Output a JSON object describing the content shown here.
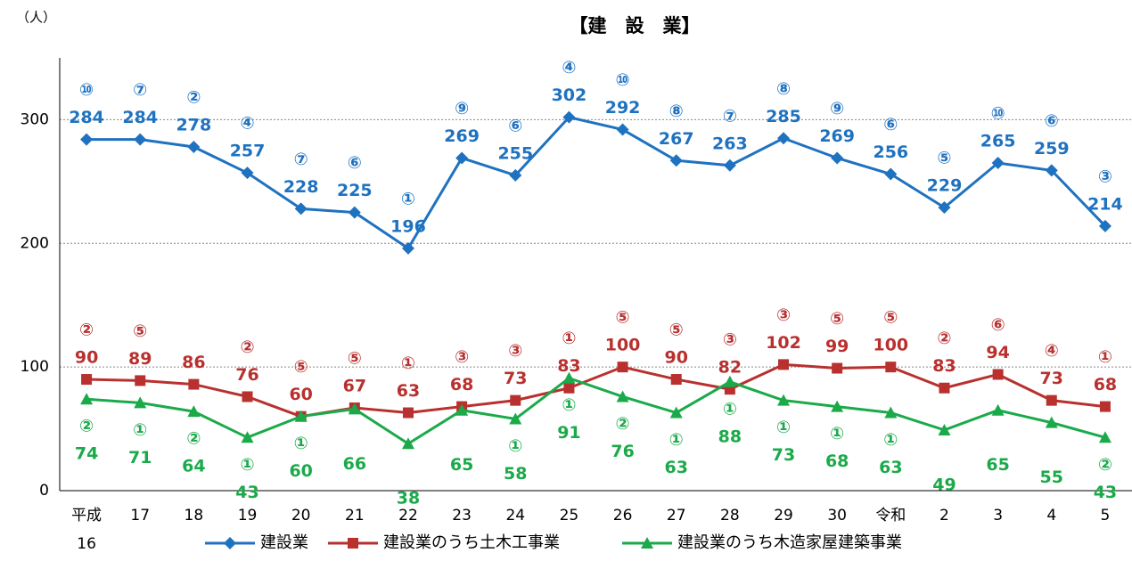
{
  "chart_data": {
    "type": "line",
    "title": "【建　設　業】",
    "y_unit": "（人）",
    "categories": [
      "平成\n16",
      "17",
      "18",
      "19",
      "20",
      "21",
      "22",
      "23",
      "24",
      "25",
      "26",
      "27",
      "28",
      "29",
      "30",
      "令和",
      "2",
      "3",
      "4",
      "5"
    ],
    "ylim": [
      0,
      350
    ],
    "yticks": [
      0,
      100,
      200,
      300
    ],
    "grid": true,
    "series": [
      {
        "name": "建設業",
        "color": "#1f72c0",
        "marker": "diamond",
        "label_position": "above",
        "values": [
          284,
          284,
          278,
          257,
          228,
          225,
          196,
          269,
          255,
          302,
          292,
          267,
          263,
          285,
          269,
          256,
          229,
          265,
          259,
          214
        ],
        "ranks": [
          "⑩",
          "⑦",
          "②",
          "④",
          "⑦",
          "⑥",
          "①",
          "⑨",
          "⑥",
          "④",
          "⑩",
          "⑧",
          "⑦",
          "⑧",
          "⑨",
          "⑥",
          "⑤",
          "⑩",
          "⑥",
          "③"
        ]
      },
      {
        "name": "建設業のうち土木工事業",
        "color": "#b8312f",
        "marker": "square",
        "label_position": "above",
        "values": [
          90,
          89,
          86,
          76,
          60,
          67,
          63,
          68,
          73,
          83,
          100,
          90,
          82,
          102,
          99,
          100,
          83,
          94,
          73,
          68
        ],
        "ranks": [
          "②",
          "⑤",
          null,
          "②",
          "⑤",
          "⑤",
          "①",
          "③",
          "③",
          "①",
          "⑤",
          "⑤",
          "③",
          "③",
          "⑤",
          "⑤",
          "②",
          "⑥",
          "④",
          "①"
        ]
      },
      {
        "name": "建設業のうち木造家屋建築事業",
        "color": "#1baa4a",
        "marker": "triangle",
        "label_position": "below",
        "values": [
          74,
          71,
          64,
          43,
          60,
          66,
          38,
          65,
          58,
          91,
          76,
          63,
          88,
          73,
          68,
          63,
          49,
          65,
          55,
          43
        ],
        "ranks": [
          "②",
          "①",
          "②",
          "①",
          "①",
          null,
          null,
          null,
          "①",
          "①",
          "②",
          "①",
          "①",
          "①",
          "①",
          "①",
          null,
          null,
          null,
          "②"
        ]
      }
    ]
  }
}
